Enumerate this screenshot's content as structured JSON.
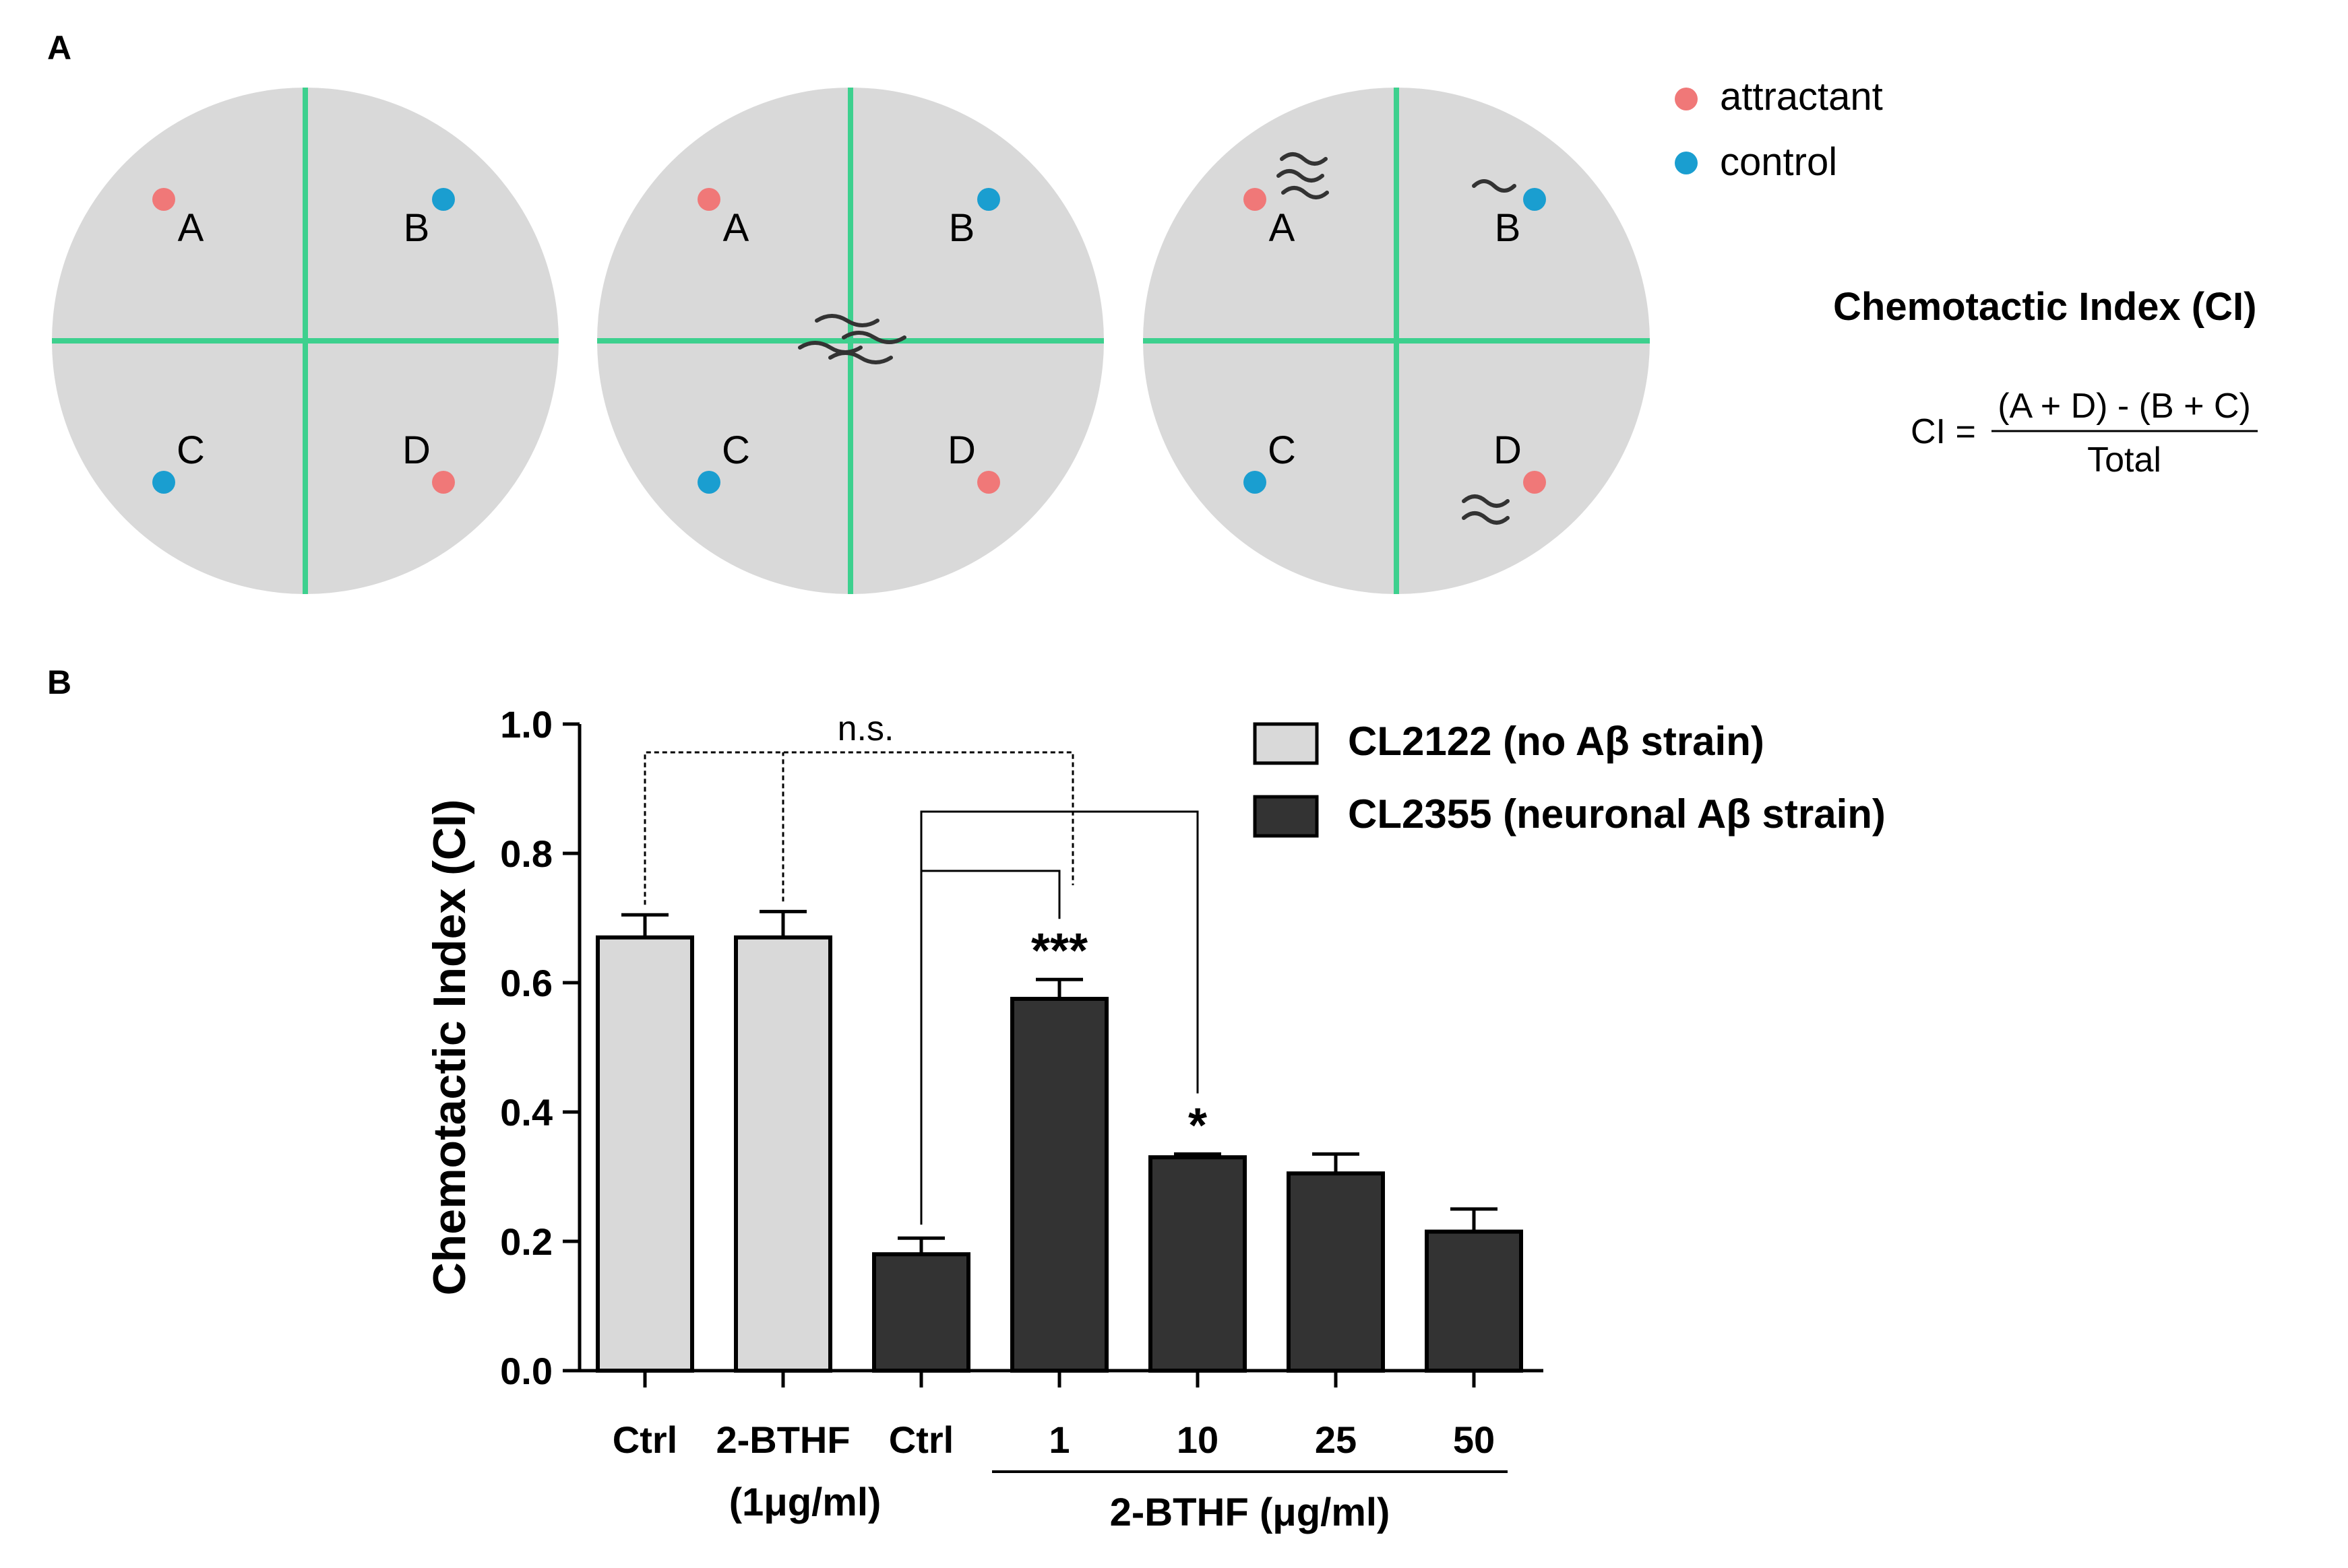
{
  "panel_a": {
    "label": "A",
    "dishes": [
      {
        "quadrants": [
          "A",
          "B",
          "C",
          "D"
        ]
      },
      {
        "quadrants": [
          "A",
          "B",
          "C",
          "D"
        ]
      },
      {
        "quadrants": [
          "A",
          "B",
          "C",
          "D"
        ]
      }
    ],
    "legend": {
      "attractant": "attractant",
      "control": "control"
    },
    "formula": {
      "title": "Chemotactic Index (CI)",
      "lhs": "CI =",
      "numerator": "(A + D) - (B + C)",
      "denominator": "Total"
    },
    "colors": {
      "dish": "#d9d9d9",
      "divider": "#3dd08e",
      "attractant": "#f07878",
      "control": "#1a9ed0",
      "worm": "#333333"
    }
  },
  "panel_b": {
    "label": "B",
    "chart_data": {
      "type": "bar",
      "title": "",
      "xlabel": "",
      "ylabel": "Chemotactic Index (CI)",
      "ylim": [
        0.0,
        1.0
      ],
      "yticks": [
        0.0,
        0.2,
        0.4,
        0.6,
        0.8,
        1.0
      ],
      "ytick_labels": [
        "0.0",
        "0.2",
        "0.4",
        "0.6",
        "0.8",
        "1.0"
      ],
      "categories": [
        "Ctrl",
        "2-BTHF",
        "Ctrl",
        "1",
        "10",
        "25",
        "50"
      ],
      "values": [
        0.67,
        0.67,
        0.18,
        0.575,
        0.33,
        0.305,
        0.215
      ],
      "errors": [
        0.035,
        0.04,
        0.025,
        0.03,
        0.005,
        0.03,
        0.035
      ],
      "strain": [
        "CL2122",
        "CL2122",
        "CL2355",
        "CL2355",
        "CL2355",
        "CL2355",
        "CL2355"
      ],
      "series": [
        {
          "name": "CL2122 (no Aβ strain)",
          "color": "#d9d9d9"
        },
        {
          "name": "CL2355 (neuronal Aβ strain)",
          "color": "#333333"
        }
      ],
      "significance": [
        "",
        "",
        "",
        "***",
        "*",
        "",
        ""
      ],
      "ns_label": "n.s.",
      "sub_label_left": "(1μg/ml)",
      "group_label": "2-BTHF (μg/ml)"
    }
  }
}
